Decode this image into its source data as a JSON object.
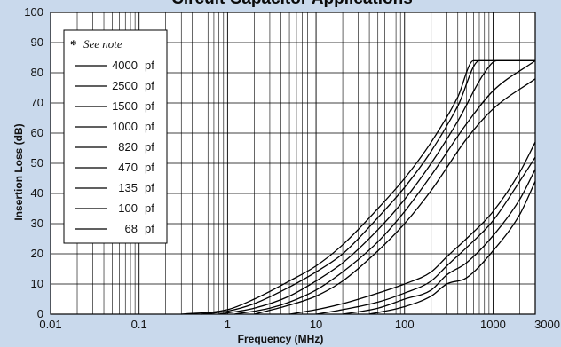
{
  "chart_data": {
    "type": "line",
    "title": "Circuit Capacitor Applications",
    "xlabel": "Frequency (MHz)",
    "ylabel": "Insertion Loss (dB)",
    "x_scale": "log",
    "xlim": [
      0.01,
      3000
    ],
    "ylim": [
      0,
      100
    ],
    "x_ticks": [
      {
        "value": 0.01,
        "label": "0.01"
      },
      {
        "value": 0.1,
        "label": "0.1"
      },
      {
        "value": 1,
        "label": "1"
      },
      {
        "value": 10,
        "label": "10"
      },
      {
        "value": 100,
        "label": "100"
      },
      {
        "value": 1000,
        "label": "1000"
      },
      {
        "value": 3000,
        "label": "3000"
      }
    ],
    "y_ticks": [
      0,
      10,
      20,
      30,
      40,
      50,
      60,
      70,
      80,
      90,
      100
    ],
    "grid": true,
    "legend": {
      "placement": "top-left",
      "note_symbol": "*",
      "note": "See note",
      "unit": "pf",
      "entries": [
        "4000",
        "2500",
        "1500",
        "1000",
        "820",
        "470",
        "135",
        "100",
        "68"
      ]
    },
    "series": [
      {
        "name": "4000",
        "points": [
          [
            0.3,
            0
          ],
          [
            1,
            1.5
          ],
          [
            2,
            5
          ],
          [
            5,
            11
          ],
          [
            10,
            16
          ],
          [
            20,
            23
          ],
          [
            50,
            35
          ],
          [
            100,
            45
          ],
          [
            200,
            57
          ],
          [
            400,
            72
          ],
          [
            600,
            84
          ],
          [
            1000,
            84
          ],
          [
            3000,
            84
          ]
        ]
      },
      {
        "name": "2500",
        "points": [
          [
            0.5,
            0
          ],
          [
            1,
            1
          ],
          [
            2,
            3.5
          ],
          [
            5,
            9
          ],
          [
            10,
            14
          ],
          [
            20,
            20
          ],
          [
            50,
            32
          ],
          [
            100,
            42
          ],
          [
            200,
            54
          ],
          [
            400,
            69
          ],
          [
            700,
            84
          ],
          [
            1000,
            84
          ],
          [
            3000,
            84
          ]
        ]
      },
      {
        "name": "1500",
        "points": [
          [
            0.8,
            0
          ],
          [
            2,
            2
          ],
          [
            5,
            6
          ],
          [
            10,
            11
          ],
          [
            20,
            17
          ],
          [
            50,
            28
          ],
          [
            100,
            38
          ],
          [
            200,
            50
          ],
          [
            400,
            64
          ],
          [
            800,
            80
          ],
          [
            1100,
            84
          ],
          [
            3000,
            84
          ]
        ]
      },
      {
        "name": "1000",
        "points": [
          [
            1.2,
            0
          ],
          [
            3,
            2
          ],
          [
            5,
            4
          ],
          [
            10,
            8
          ],
          [
            20,
            14
          ],
          [
            50,
            24
          ],
          [
            100,
            34
          ],
          [
            200,
            46
          ],
          [
            500,
            63
          ],
          [
            1000,
            74
          ],
          [
            3000,
            84
          ]
        ]
      },
      {
        "name": "820",
        "points": [
          [
            2,
            0
          ],
          [
            5,
            3
          ],
          [
            10,
            6
          ],
          [
            20,
            11
          ],
          [
            50,
            21
          ],
          [
            100,
            30
          ],
          [
            200,
            41
          ],
          [
            500,
            58
          ],
          [
            1000,
            68
          ],
          [
            3000,
            78
          ]
        ]
      },
      {
        "name": "470",
        "points": [
          [
            5,
            0
          ],
          [
            10,
            1.5
          ],
          [
            20,
            3.5
          ],
          [
            50,
            7
          ],
          [
            100,
            10
          ],
          [
            200,
            14
          ],
          [
            300,
            19
          ],
          [
            500,
            25
          ],
          [
            1000,
            34
          ],
          [
            2000,
            47
          ],
          [
            3000,
            57
          ]
        ]
      },
      {
        "name": "135",
        "points": [
          [
            10,
            0
          ],
          [
            20,
            1.5
          ],
          [
            50,
            4
          ],
          [
            100,
            7
          ],
          [
            200,
            11
          ],
          [
            300,
            16
          ],
          [
            500,
            22
          ],
          [
            1000,
            31
          ],
          [
            2000,
            44
          ],
          [
            3000,
            52
          ]
        ]
      },
      {
        "name": "100",
        "points": [
          [
            20,
            0
          ],
          [
            50,
            2
          ],
          [
            100,
            5
          ],
          [
            200,
            8
          ],
          [
            300,
            13
          ],
          [
            500,
            17
          ],
          [
            1000,
            26
          ],
          [
            2000,
            38
          ],
          [
            3000,
            48
          ]
        ]
      },
      {
        "name": "68",
        "points": [
          [
            40,
            0
          ],
          [
            100,
            2.5
          ],
          [
            200,
            6
          ],
          [
            300,
            10
          ],
          [
            500,
            12
          ],
          [
            1000,
            21
          ],
          [
            2000,
            33
          ],
          [
            3000,
            44
          ]
        ]
      }
    ]
  }
}
